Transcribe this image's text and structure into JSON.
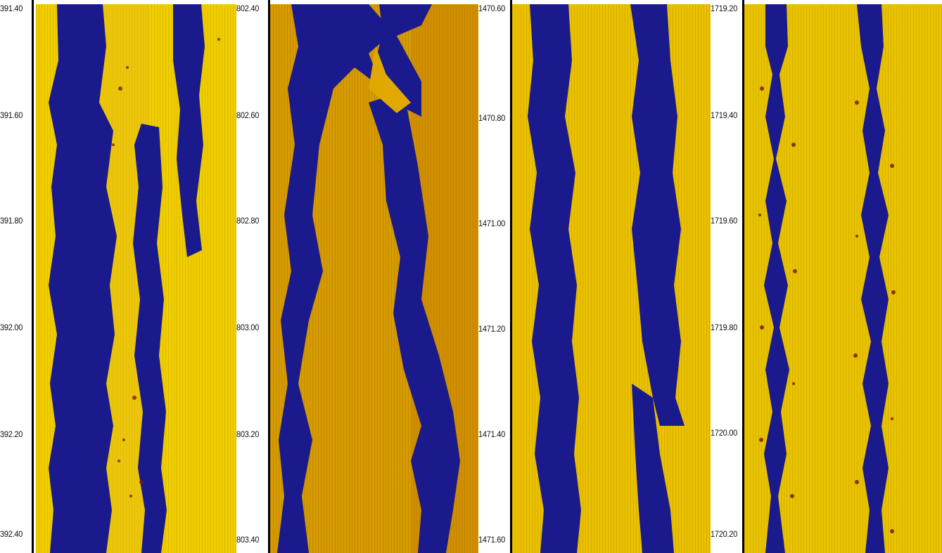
{
  "colors": {
    "blue": "#1a1a8c",
    "gold": "#e2b400",
    "yellow": "#f2d600",
    "amber": "#c98d00",
    "dark_red": "#7a1d10",
    "axis": "#000000"
  },
  "panels": [
    {
      "ticks": [
        "391.40",
        "391.60",
        "391.80",
        "392.00",
        "392.20",
        "392.40"
      ]
    },
    {
      "ticks": [
        "802.40",
        "802.60",
        "802.80",
        "803.00",
        "803.20",
        "803.40"
      ]
    },
    {
      "ticks": [
        "1470.60",
        "1470.80",
        "1471.00",
        "1471.20",
        "1471.40",
        "1471.60"
      ]
    },
    {
      "ticks": [
        "1719.20",
        "1719.40",
        "1719.60",
        "1719.80",
        "1720.00",
        "1720.20"
      ]
    }
  ]
}
